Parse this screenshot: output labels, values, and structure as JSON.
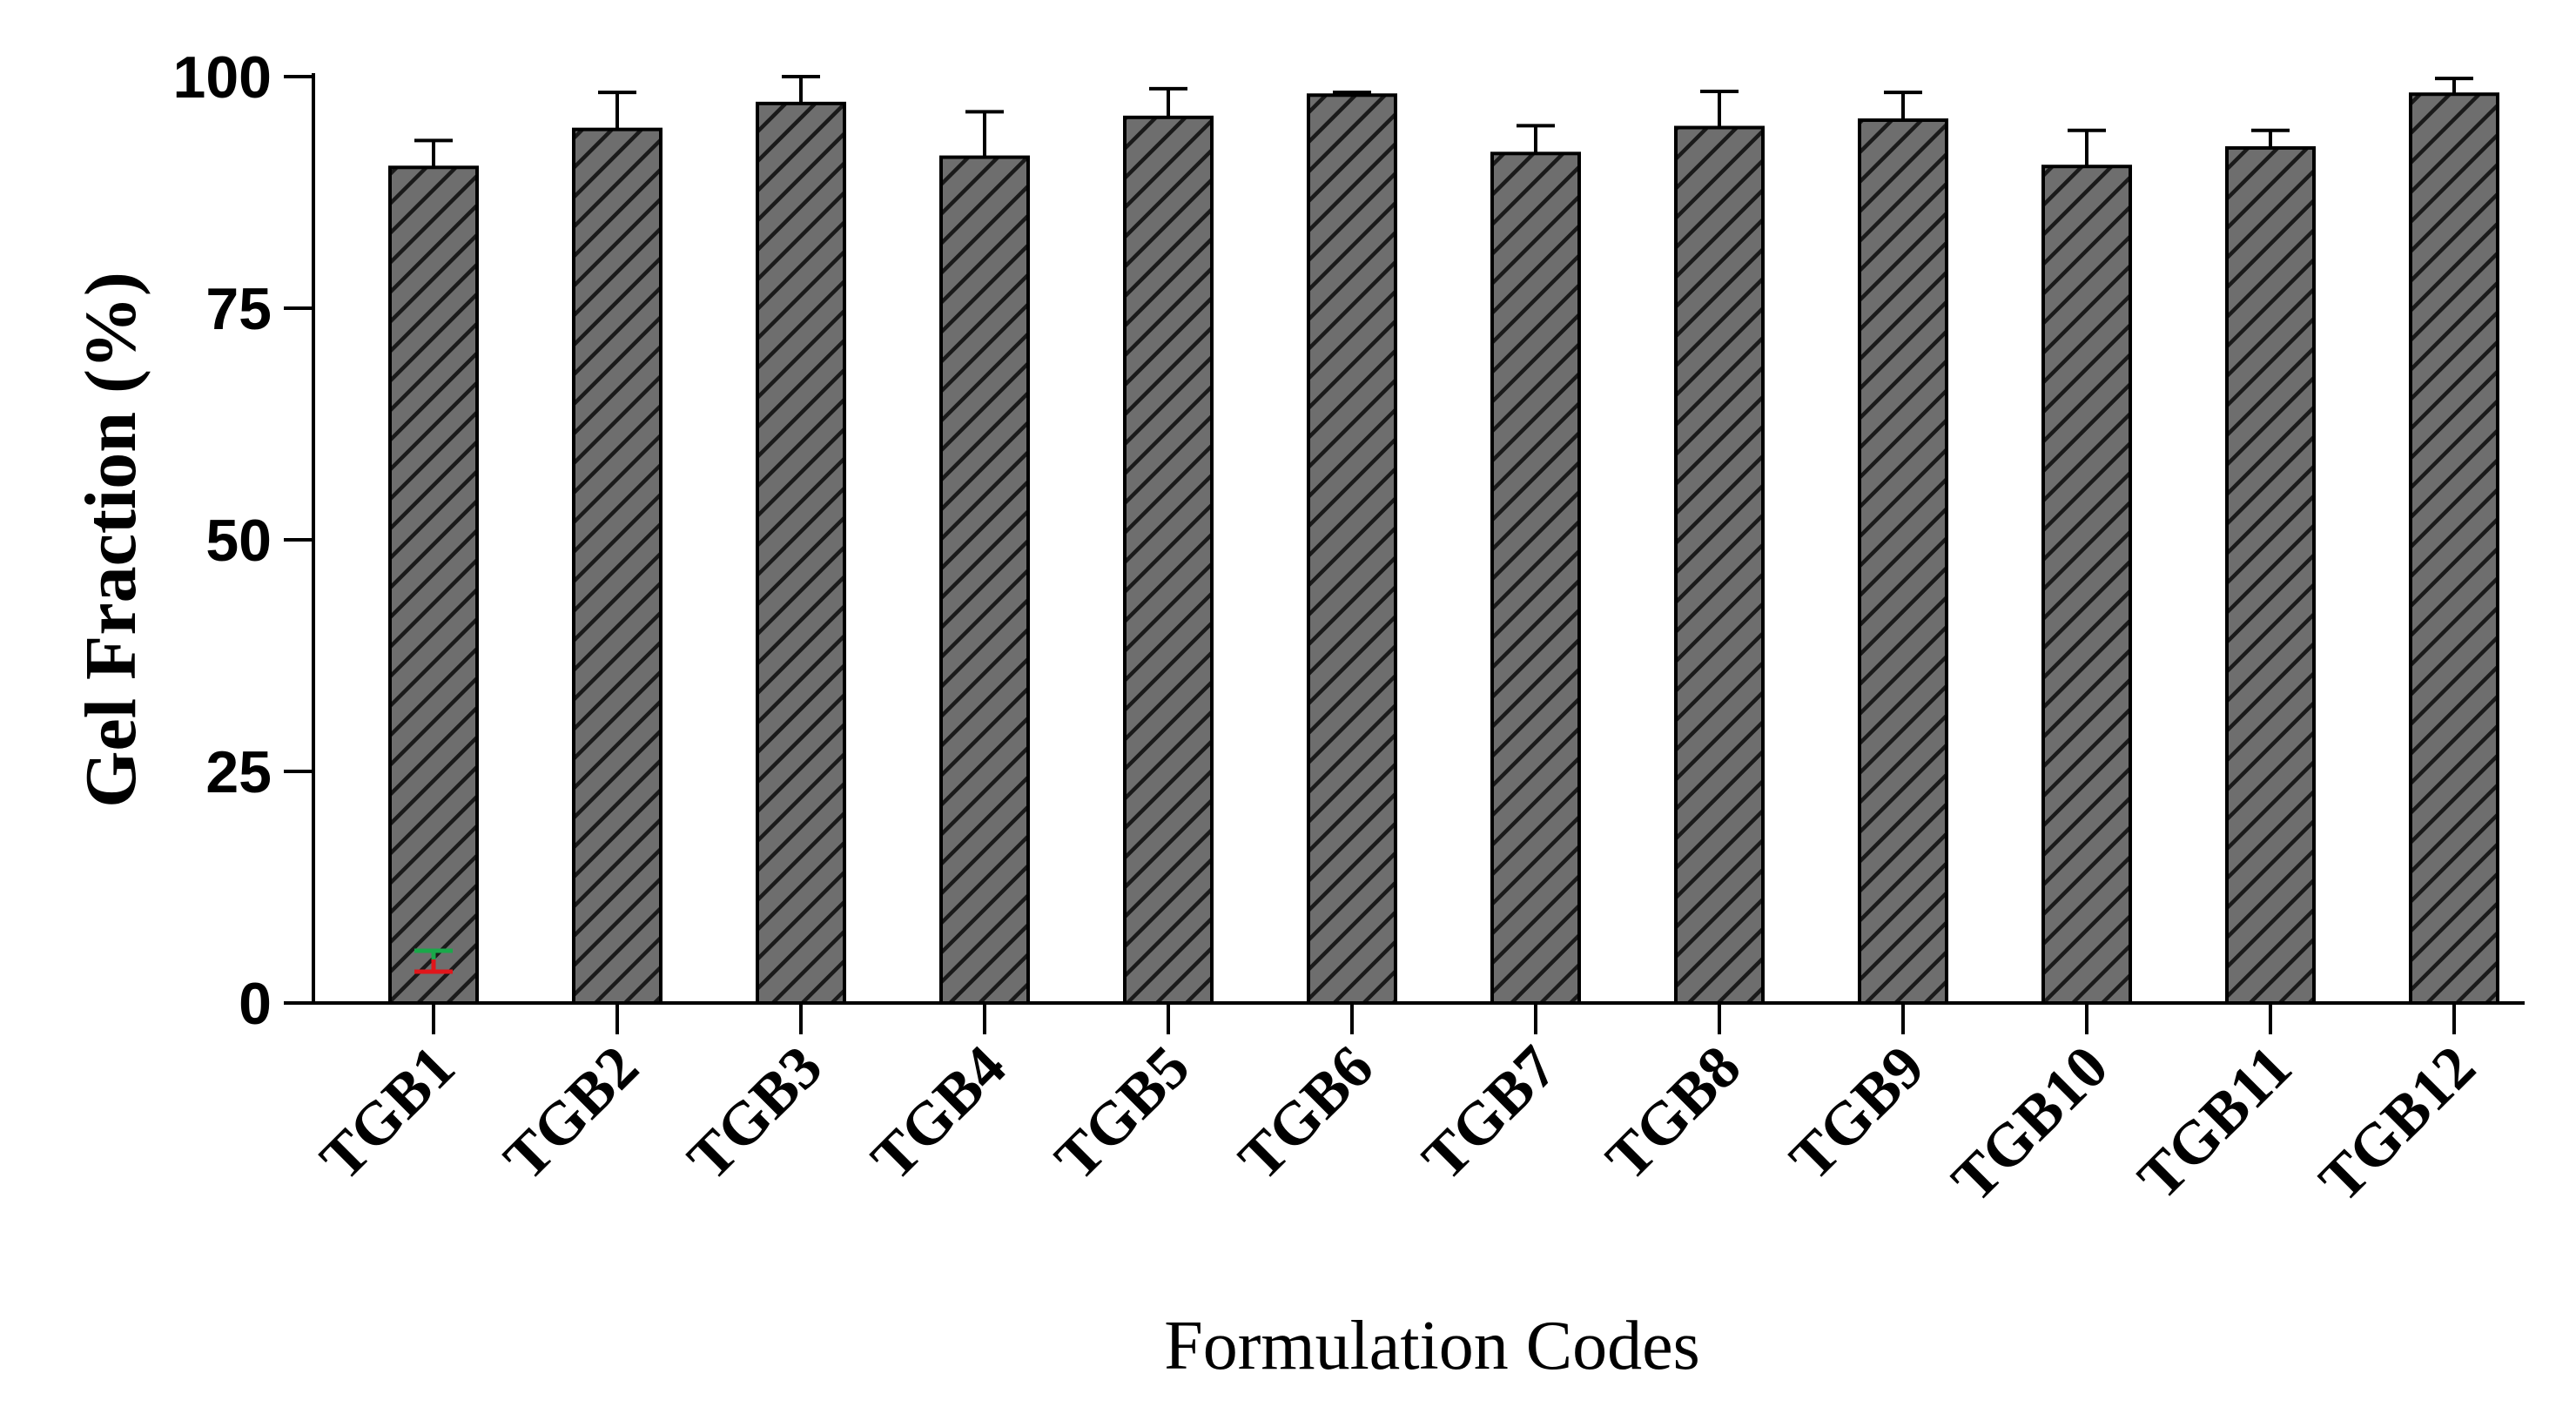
{
  "chart_data": {
    "type": "bar",
    "title": "",
    "xlabel": "Formulation Codes",
    "ylabel": "Gel Fraction (%)",
    "ylim": [
      0,
      100
    ],
    "yticks": [
      0,
      25,
      50,
      75,
      100
    ],
    "categories": [
      "TGB1",
      "TGB2",
      "TGB3",
      "TGB4",
      "TGB5",
      "TGB6",
      "TGB7",
      "TGB8",
      "TGB9",
      "TGB10",
      "TGB11",
      "TGB12"
    ],
    "values": [
      90.2,
      94.3,
      97.1,
      91.3,
      95.6,
      98.0,
      91.7,
      94.5,
      95.3,
      90.3,
      92.3,
      98.1
    ],
    "errors": [
      2.9,
      4.0,
      2.9,
      4.9,
      3.1,
      0.3,
      3.0,
      3.9,
      3.0,
      3.9,
      1.9,
      1.7
    ],
    "bar_fill": "#6e6e6e",
    "bar_hatch": "#1a1a1a",
    "marker_colors": [
      "#1aa84a",
      "#e0161b"
    ],
    "grid": false,
    "legend": "none"
  }
}
